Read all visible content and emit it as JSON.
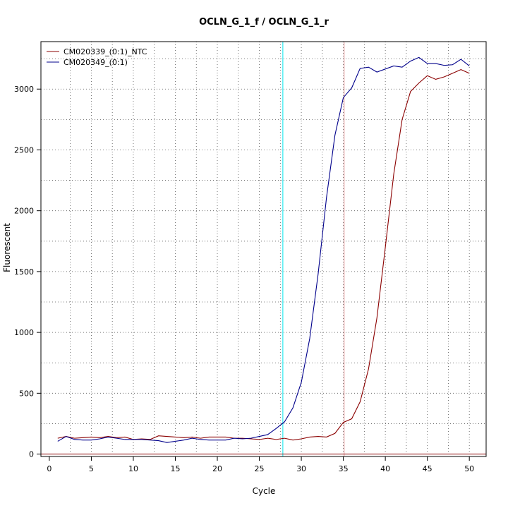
{
  "chart_data": {
    "type": "line",
    "title": "OCLN_G_1_f / OCLN_G_1_r",
    "xlabel": "Cycle",
    "ylabel": "Fluorescent",
    "xlim": [
      -1,
      52
    ],
    "ylim": [
      -20,
      3390
    ],
    "x_ticks": [
      0,
      5,
      10,
      15,
      20,
      25,
      30,
      35,
      40,
      45,
      50
    ],
    "y_ticks": [
      0,
      500,
      1000,
      1500,
      2000,
      2500,
      3000
    ],
    "grid": true,
    "legend_position": "top-left",
    "vertical_markers": [
      {
        "x": 27.8,
        "color": "#00e5ee"
      },
      {
        "x": 35.1,
        "color": "#e8a0a0"
      }
    ],
    "baseline": {
      "y": 0,
      "color": "#8b0000"
    },
    "x": [
      1,
      2,
      3,
      4,
      5,
      6,
      7,
      8,
      9,
      10,
      11,
      12,
      13,
      14,
      15,
      16,
      17,
      18,
      19,
      20,
      21,
      22,
      23,
      24,
      25,
      26,
      27,
      28,
      29,
      30,
      31,
      32,
      33,
      34,
      35,
      36,
      37,
      38,
      39,
      40,
      41,
      42,
      43,
      44,
      45,
      46,
      47,
      48,
      49,
      50
    ],
    "series": [
      {
        "name": "CM020339_(0:1)_NTC",
        "color": "#8b0000",
        "values": [
          130,
          145,
          130,
          135,
          140,
          135,
          145,
          135,
          140,
          120,
          125,
          120,
          150,
          145,
          140,
          135,
          140,
          130,
          140,
          140,
          140,
          130,
          130,
          125,
          120,
          130,
          120,
          130,
          115,
          125,
          140,
          145,
          140,
          170,
          260,
          290,
          430,
          700,
          1120,
          1700,
          2300,
          2750,
          2980,
          3050,
          3110,
          3080,
          3100,
          3130,
          3160,
          3130
        ]
      },
      {
        "name": "CM020349_(0:1)",
        "color": "#00008b",
        "values": [
          105,
          145,
          120,
          115,
          115,
          125,
          140,
          130,
          120,
          120,
          120,
          115,
          110,
          95,
          105,
          115,
          130,
          120,
          115,
          115,
          115,
          130,
          125,
          130,
          145,
          160,
          210,
          265,
          380,
          590,
          950,
          1480,
          2110,
          2620,
          2930,
          3010,
          3170,
          3180,
          3140,
          3165,
          3190,
          3180,
          3230,
          3260,
          3210,
          3210,
          3195,
          3200,
          3245,
          3190
        ]
      }
    ]
  }
}
